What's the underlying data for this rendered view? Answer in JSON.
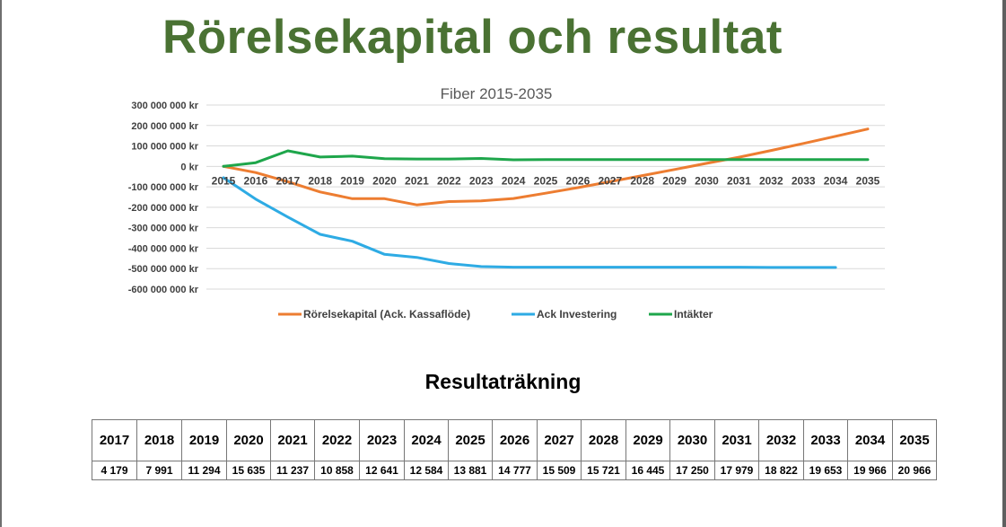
{
  "page": {
    "title": "Rörelsekapital och resultat",
    "table_title": "Resultaträkning"
  },
  "colors": {
    "title": "#4a7233",
    "rorelsekapital": "#ed7d31",
    "ack_investering": "#2eabe4",
    "intakter": "#1ea64b"
  },
  "chart_data": {
    "type": "line",
    "title": "Fiber 2015-2035",
    "xlabel": "",
    "ylabel": "",
    "x": [
      "2015",
      "2016",
      "2017",
      "2018",
      "2019",
      "2020",
      "2021",
      "2022",
      "2023",
      "2024",
      "2025",
      "2026",
      "2027",
      "2028",
      "2029",
      "2030",
      "2031",
      "2032",
      "2033",
      "2034",
      "2035"
    ],
    "ylim": [
      -600000000,
      300000000
    ],
    "yticks": [
      300000000,
      200000000,
      100000000,
      0,
      -100000000,
      -200000000,
      -300000000,
      -400000000,
      -500000000,
      -600000000
    ],
    "ytick_labels": [
      "300 000 000 kr",
      "200 000 000 kr",
      "100 000 000 kr",
      "0 kr",
      "-100 000 000 kr",
      "-200 000 000 kr",
      "-300 000 000 kr",
      "-400 000 000 kr",
      "-500 000 000 kr",
      "-600 000 000 kr"
    ],
    "grid": true,
    "legend_position": "bottom",
    "series": [
      {
        "name": "Rörelsekapital (Ack. Kassaflöde)",
        "color": "#ed7d31",
        "values": [
          0,
          -30000000,
          -75000000,
          -125000000,
          -158000000,
          -158000000,
          -188000000,
          -172000000,
          -169000000,
          -157000000,
          -131000000,
          -104000000,
          -75000000,
          -45000000,
          -15000000,
          15000000,
          45000000,
          78000000,
          112000000,
          147000000,
          183000000
        ]
      },
      {
        "name": "Ack Investering",
        "color": "#2eabe4",
        "values": [
          -55000000,
          -160000000,
          -248000000,
          -332000000,
          -366000000,
          -430000000,
          -445000000,
          -475000000,
          -490000000,
          -493000000,
          -493000000,
          -493000000,
          -493000000,
          -493000000,
          -493000000,
          -493000000,
          -493000000,
          -494000000,
          -494000000,
          -494000000,
          null
        ]
      },
      {
        "name": "Intäkter",
        "color": "#1ea64b",
        "values": [
          0,
          18000000,
          76000000,
          46000000,
          50000000,
          38000000,
          36000000,
          36000000,
          39000000,
          32000000,
          33000000,
          33000000,
          33000000,
          33000000,
          33000000,
          33000000,
          33000000,
          33000000,
          33000000,
          33000000,
          33000000
        ]
      }
    ]
  },
  "result_table": {
    "years": [
      "2017",
      "2018",
      "2019",
      "2020",
      "2021",
      "2022",
      "2023",
      "2024",
      "2025",
      "2026",
      "2027",
      "2028",
      "2029",
      "2030",
      "2031",
      "2032",
      "2033",
      "2034",
      "2035"
    ],
    "values": [
      "4 179",
      "7 991",
      "11 294",
      "15 635",
      "11 237",
      "10 858",
      "12 641",
      "12 584",
      "13 881",
      "14 777",
      "15 509",
      "15 721",
      "16 445",
      "17 250",
      "17 979",
      "18 822",
      "19 653",
      "19 966",
      "20 966"
    ]
  }
}
